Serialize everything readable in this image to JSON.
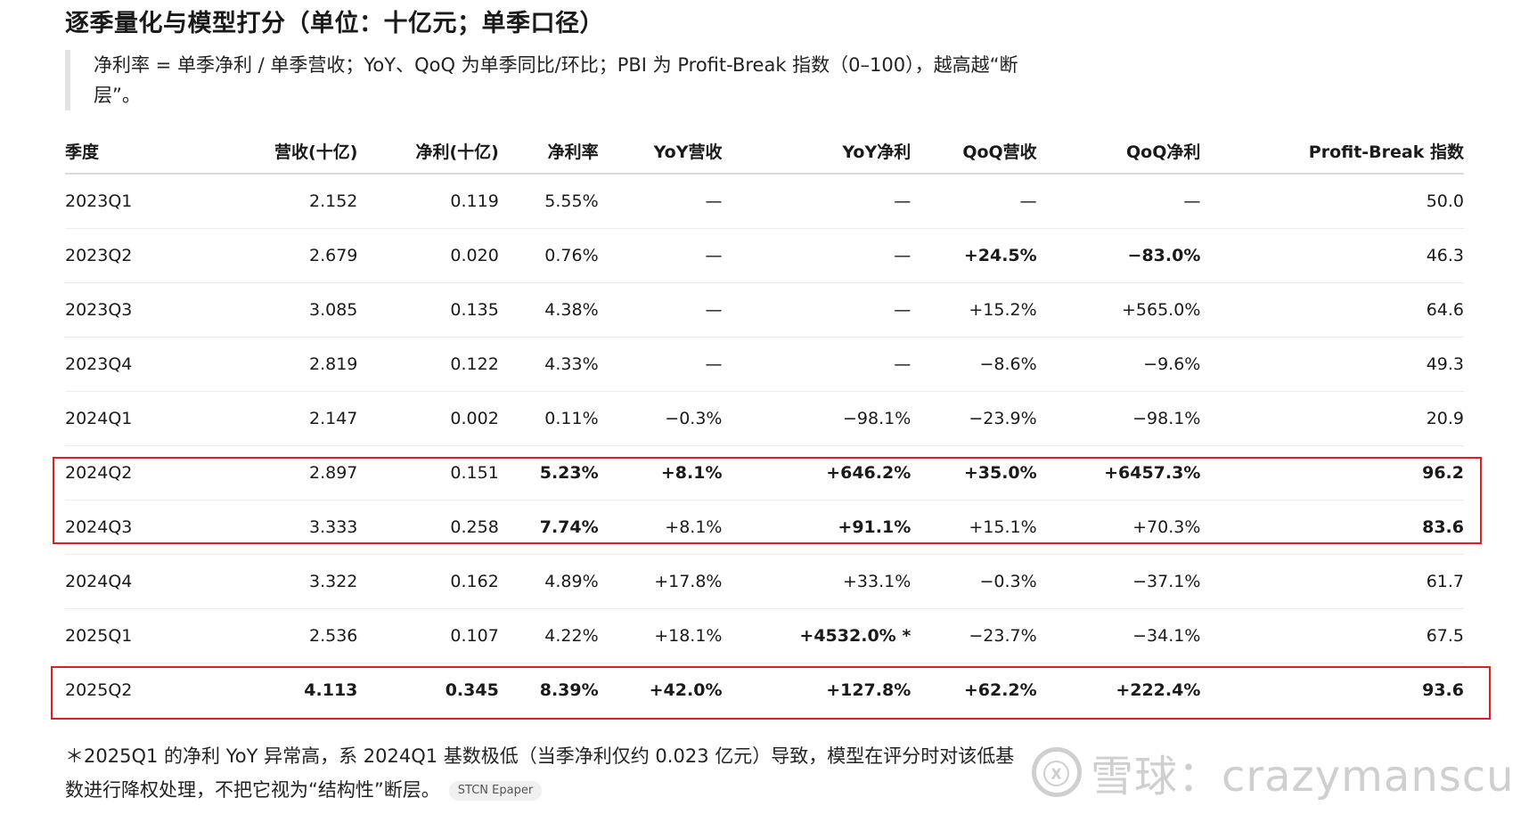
{
  "title": "逐季量化与模型打分（单位：十亿元；单季口径）",
  "note": "净利率 = 单季净利 / 单季营收；YoY、QoQ 为单季同比/环比；PBI 为 Profit-Break 指数（0–100），越高越“断层”。",
  "table": {
    "headers": [
      "季度",
      "营收(十亿)",
      "净利(十亿)",
      "净利率",
      "YoY营收",
      "YoY净利",
      "QoQ营收",
      "QoQ净利",
      "Profit-Break 指数"
    ],
    "rows": [
      [
        "2023Q1",
        "2.152",
        "0.119",
        "5.55%",
        "—",
        "—",
        "—",
        "—",
        "50.0"
      ],
      [
        "2023Q2",
        "2.679",
        "0.020",
        "0.76%",
        "—",
        "—",
        "+24.5%",
        "−83.0%",
        "46.3"
      ],
      [
        "2023Q3",
        "3.085",
        "0.135",
        "4.38%",
        "—",
        "—",
        "+15.2%",
        "+565.0%",
        "64.6"
      ],
      [
        "2023Q4",
        "2.819",
        "0.122",
        "4.33%",
        "—",
        "—",
        "−8.6%",
        "−9.6%",
        "49.3"
      ],
      [
        "2024Q1",
        "2.147",
        "0.002",
        "0.11%",
        "−0.3%",
        "−98.1%",
        "−23.9%",
        "−98.1%",
        "20.9"
      ],
      [
        "2024Q2",
        "2.897",
        "0.151",
        "5.23%",
        "+8.1%",
        "+646.2%",
        "+35.0%",
        "+6457.3%",
        "96.2"
      ],
      [
        "2024Q3",
        "3.333",
        "0.258",
        "7.74%",
        "+8.1%",
        "+91.1%",
        "+15.1%",
        "+70.3%",
        "83.6"
      ],
      [
        "2024Q4",
        "3.322",
        "0.162",
        "4.89%",
        "+17.8%",
        "+33.1%",
        "−0.3%",
        "−37.1%",
        "61.7"
      ],
      [
        "2025Q1",
        "2.536",
        "0.107",
        "4.22%",
        "+18.1%",
        "+4532.0% *",
        "−23.7%",
        "−34.1%",
        "67.5"
      ],
      [
        "2025Q2",
        "4.113",
        "0.345",
        "8.39%",
        "+42.0%",
        "+127.8%",
        "+62.2%",
        "+222.4%",
        "93.6"
      ]
    ]
  },
  "footnote": "＊2025Q1 的净利 YoY 异常高，系 2024Q1 基数极低（当季净利仅约 0.023 亿元）导致，模型在评分时对该低基数进行降权处理，不把它视为“结构性”断层。",
  "tag": "STCN Epaper",
  "watermark": "雪球：crazymanscu",
  "colors": {
    "highlight_border": "#e02020",
    "watermark": "#cfcfcf"
  }
}
